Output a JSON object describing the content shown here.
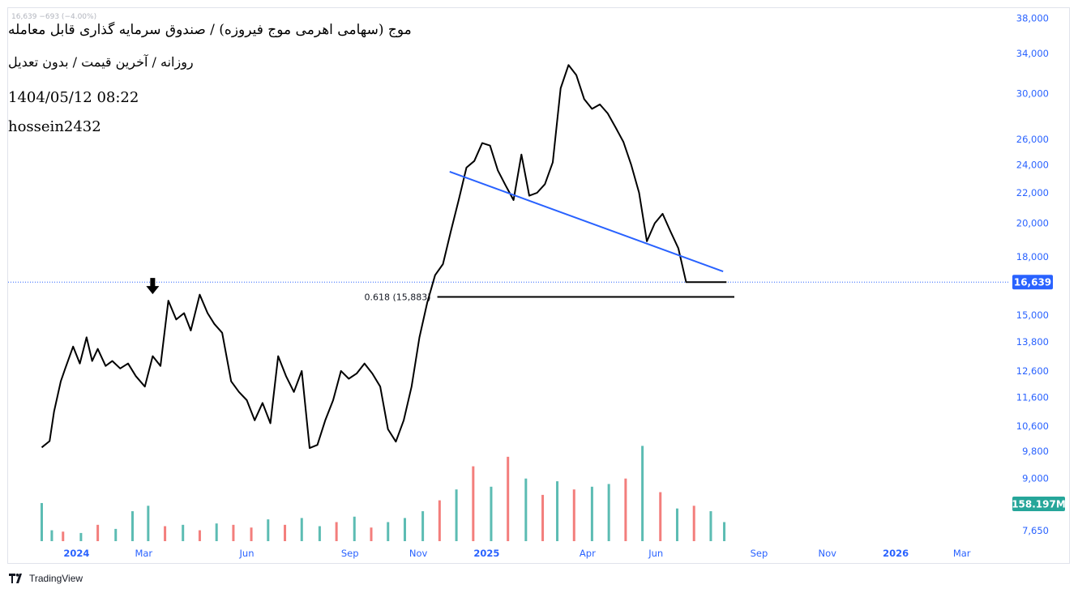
{
  "header": {
    "ghost_line": "16,639  −693 (−4.00%)",
    "title": "موج (سهامی اهرمی موج فیروزه) / صندوق سرمایه گذاری قابل معامله",
    "subtitle": "روزانه / آخرین قیمت / بدون تعدیل",
    "timestamp": "1404/05/12 08:22",
    "author": "hossein2432"
  },
  "footer": {
    "brand": "TradingView"
  },
  "colors": {
    "price_line": "#000000",
    "trend_line": "#2962ff",
    "axis_text": "#2962ff",
    "badge_bg": "#2962ff",
    "volume_badge_bg": "#26a69a",
    "volume_up": "#26a69a",
    "volume_down": "#ef5350"
  },
  "chart_data": {
    "type": "line",
    "y_scale": "log",
    "ylim": [
      7400,
      39000
    ],
    "y_ticks": [
      "38,000",
      "34,000",
      "30,000",
      "26,000",
      "24,000",
      "22,000",
      "20,000",
      "18,000",
      "15,000",
      "13,800",
      "12,600",
      "11,600",
      "10,600",
      "9,800",
      "9,000",
      "7,650"
    ],
    "y_tick_values": [
      38000,
      34000,
      30000,
      26000,
      24000,
      22000,
      20000,
      18000,
      15000,
      13800,
      12600,
      11600,
      10600,
      9800,
      9000,
      7650
    ],
    "x_ticks": [
      "2024",
      "Mar",
      "Jun",
      "Sep",
      "Nov",
      "2025",
      "Apr",
      "Jun",
      "Sep",
      "Nov",
      "2026",
      "Mar"
    ],
    "x_tick_dates": [
      "2024-01-01",
      "2024-03-01",
      "2024-06-01",
      "2024-09-01",
      "2024-11-01",
      "2025-01-01",
      "2025-04-01",
      "2025-06-01",
      "2025-09-01",
      "2025-11-01",
      "2026-01-01",
      "2026-03-01"
    ],
    "x_range": [
      "2023-11-01",
      "2026-04-10"
    ],
    "price": {
      "x": [
        "2023-12-01",
        "2023-12-08",
        "2023-12-12",
        "2023-12-18",
        "2023-12-22",
        "2023-12-29",
        "2024-01-04",
        "2024-01-10",
        "2024-01-15",
        "2024-01-20",
        "2024-01-27",
        "2024-02-02",
        "2024-02-09",
        "2024-02-16",
        "2024-02-23",
        "2024-03-02",
        "2024-03-09",
        "2024-03-16",
        "2024-03-23",
        "2024-03-30",
        "2024-04-06",
        "2024-04-12",
        "2024-04-20",
        "2024-04-27",
        "2024-05-03",
        "2024-05-10",
        "2024-05-18",
        "2024-05-25",
        "2024-06-01",
        "2024-06-08",
        "2024-06-15",
        "2024-06-22",
        "2024-06-29",
        "2024-07-06",
        "2024-07-13",
        "2024-07-20",
        "2024-07-27",
        "2024-08-03",
        "2024-08-10",
        "2024-08-17",
        "2024-08-24",
        "2024-08-31",
        "2024-09-07",
        "2024-09-14",
        "2024-09-21",
        "2024-09-28",
        "2024-10-05",
        "2024-10-12",
        "2024-10-19",
        "2024-10-26",
        "2024-11-02",
        "2024-11-09",
        "2024-11-16",
        "2024-11-23",
        "2024-11-30",
        "2024-12-07",
        "2024-12-14",
        "2024-12-21",
        "2024-12-28",
        "2025-01-04",
        "2025-01-11",
        "2025-01-18",
        "2025-01-25",
        "2025-02-01",
        "2025-02-08",
        "2025-02-15",
        "2025-02-22",
        "2025-03-01",
        "2025-03-08",
        "2025-03-15",
        "2025-03-22",
        "2025-03-29",
        "2025-04-05",
        "2025-04-12",
        "2025-04-19",
        "2025-04-26",
        "2025-05-03",
        "2025-05-10",
        "2025-05-17",
        "2025-05-24",
        "2025-05-31",
        "2025-06-07",
        "2025-06-14",
        "2025-06-21",
        "2025-06-28",
        "2025-07-05",
        "2025-07-12",
        "2025-07-19",
        "2025-07-26",
        "2025-08-03"
      ],
      "y": [
        9920,
        10120,
        11100,
        12200,
        12700,
        13600,
        12900,
        14000,
        13000,
        13500,
        12800,
        13000,
        12700,
        12900,
        12400,
        12000,
        13200,
        12800,
        15700,
        14800,
        15100,
        14300,
        16000,
        15100,
        14600,
        14200,
        12200,
        11800,
        11500,
        10800,
        11400,
        10700,
        13200,
        12400,
        11800,
        12600,
        9900,
        10000,
        10800,
        11500,
        12600,
        12300,
        12500,
        12900,
        12500,
        12000,
        10500,
        10100,
        10800,
        12000,
        14000,
        15600,
        17000,
        17600,
        19500,
        21500,
        23800,
        24300,
        25700,
        25500,
        23600,
        22500,
        21500,
        24800,
        21800,
        22000,
        22600,
        24200,
        30500,
        32800,
        31800,
        29500,
        28600,
        29000,
        28200,
        27000,
        25800,
        24000,
        22000,
        18900,
        20000,
        20600,
        19500,
        18500,
        16639,
        16639,
        16639,
        16639,
        16639,
        16639
      ],
      "last_value": 16639,
      "last_label": "16,639"
    },
    "trendline": {
      "x": [
        "2024-11-29",
        "2025-07-31"
      ],
      "y": [
        23500,
        17200
      ]
    },
    "fib_level": {
      "label": "0.618 (15,883)",
      "value": 15883,
      "x": [
        "2024-11-18",
        "2025-08-10"
      ]
    },
    "marker": {
      "type": "down-arrow",
      "x": "2024-03-09",
      "y": 15700
    },
    "volume": {
      "label": "158.197M",
      "x": [
        "2023-12-01",
        "2023-12-10",
        "2023-12-20",
        "2024-01-05",
        "2024-01-20",
        "2024-02-05",
        "2024-02-20",
        "2024-03-05",
        "2024-03-20",
        "2024-04-05",
        "2024-04-20",
        "2024-05-05",
        "2024-05-20",
        "2024-06-05",
        "2024-06-20",
        "2024-07-05",
        "2024-07-20",
        "2024-08-05",
        "2024-08-20",
        "2024-09-05",
        "2024-09-20",
        "2024-10-05",
        "2024-10-20",
        "2024-11-05",
        "2024-11-20",
        "2024-12-05",
        "2024-12-20",
        "2025-01-05",
        "2025-01-20",
        "2025-02-05",
        "2025-02-20",
        "2025-03-05",
        "2025-03-20",
        "2025-04-05",
        "2025-04-20",
        "2025-05-05",
        "2025-05-20",
        "2025-06-05",
        "2025-06-20",
        "2025-07-05",
        "2025-07-20",
        "2025-08-01"
      ],
      "values": [
        0.28,
        0.08,
        0.07,
        0.06,
        0.12,
        0.09,
        0.22,
        0.26,
        0.11,
        0.12,
        0.08,
        0.13,
        0.12,
        0.1,
        0.16,
        0.12,
        0.17,
        0.11,
        0.14,
        0.18,
        0.1,
        0.14,
        0.17,
        0.22,
        0.3,
        0.38,
        0.55,
        0.4,
        0.62,
        0.46,
        0.34,
        0.44,
        0.38,
        0.4,
        0.42,
        0.46,
        0.7,
        0.36,
        0.24,
        0.26,
        0.22,
        0.14
      ],
      "up": [
        true,
        true,
        false,
        true,
        false,
        true,
        true,
        true,
        false,
        true,
        false,
        true,
        false,
        false,
        true,
        false,
        true,
        true,
        false,
        true,
        false,
        true,
        true,
        true,
        false,
        true,
        false,
        true,
        false,
        true,
        false,
        true,
        false,
        true,
        true,
        false,
        true,
        false,
        true,
        false,
        true,
        true
      ]
    }
  }
}
